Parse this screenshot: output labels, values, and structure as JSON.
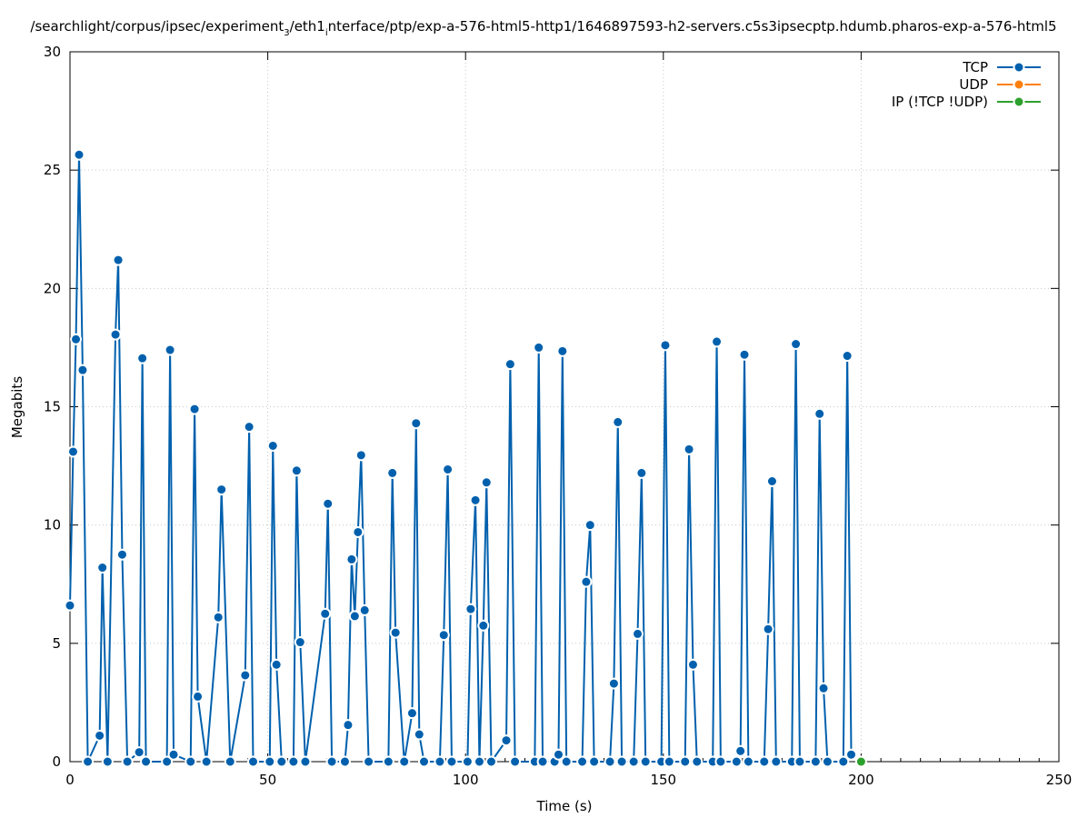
{
  "chart_data": {
    "type": "line",
    "title": "/searchlight/corpus/ipsec/experiment",
    "title_sub": "3",
    "title_mid": "/eth1",
    "title_sub2": "i",
    "title_end": "nterface/ptp/exp-a-576-html5-http1/1646897593-h2-servers.c5s3ipsecptp.hdumb.pharos-exp-a-576-html5",
    "xlabel": "Time (s)",
    "ylabel": "Megabits",
    "xlim": [
      0,
      250
    ],
    "ylim": [
      0,
      30
    ],
    "xticks": [
      0,
      50,
      100,
      150,
      200,
      250
    ],
    "yticks": [
      0,
      5,
      10,
      15,
      20,
      25,
      30
    ],
    "grid": true,
    "legend_position": "top-right",
    "series": [
      {
        "name": "TCP",
        "color": "#0060ad",
        "x": [
          0,
          0.8,
          1.5,
          2.3,
          3.2,
          4.5,
          7.5,
          8.2,
          9.5,
          11.5,
          12.2,
          13.2,
          14.5,
          17.5,
          18.3,
          19.2,
          24.5,
          25.3,
          26.2,
          30.5,
          31.5,
          32.3,
          34.5,
          37.5,
          38.3,
          40.5,
          44.3,
          45.3,
          46.3,
          50.5,
          51.3,
          52.2,
          53.5,
          56.5,
          57.3,
          58.2,
          59.5,
          64.5,
          65.2,
          66.2,
          69.5,
          70.3,
          71.2,
          72.0,
          72.8,
          73.6,
          74.5,
          75.5,
          80.5,
          81.5,
          82.3,
          84.5,
          86.5,
          87.5,
          88.3,
          89.5,
          93.5,
          94.5,
          95.5,
          96.5,
          100.5,
          101.3,
          102.5,
          103.5,
          104.5,
          105.3,
          106.5,
          110.3,
          111.3,
          112.5,
          117.5,
          118.5,
          119.5,
          122.5,
          123.5,
          124.5,
          125.5,
          129.5,
          130.5,
          131.5,
          132.5,
          136.5,
          137.5,
          138.5,
          139.5,
          142.5,
          143.5,
          144.5,
          145.5,
          149.5,
          150.5,
          151.5,
          155.5,
          156.5,
          157.5,
          158.5,
          162.5,
          163.5,
          164.5,
          168.5,
          169.5,
          170.5,
          171.5,
          175.5,
          176.5,
          177.5,
          178.5,
          182.5,
          183.5,
          184.5,
          188.5,
          189.5,
          190.5,
          191.5,
          195.5,
          196.5,
          197.5
        ],
        "y": [
          6.6,
          13.1,
          17.85,
          25.65,
          16.55,
          0,
          1.1,
          8.2,
          0,
          18.05,
          21.2,
          8.75,
          0,
          0.4,
          17.05,
          0,
          0,
          17.4,
          0.3,
          0,
          14.9,
          2.75,
          0,
          6.1,
          11.5,
          0,
          3.65,
          14.15,
          0,
          0,
          13.35,
          4.1,
          0,
          0,
          12.3,
          5.05,
          0,
          6.25,
          10.9,
          0,
          0,
          1.55,
          8.55,
          6.15,
          9.7,
          12.95,
          6.4,
          0,
          0,
          12.2,
          5.45,
          0,
          2.05,
          14.3,
          1.15,
          0,
          0,
          5.35,
          12.35,
          0,
          0,
          6.45,
          11.05,
          0,
          5.75,
          11.8,
          0,
          0.9,
          16.8,
          0,
          0,
          17.5,
          0,
          0,
          0.3,
          17.35,
          0,
          0,
          7.6,
          10,
          0,
          0,
          3.3,
          14.35,
          0,
          0,
          5.4,
          12.2,
          0,
          0,
          17.6,
          0,
          0,
          13.2,
          4.1,
          0,
          0,
          17.75,
          0,
          0,
          0.45,
          17.2,
          0,
          0,
          5.6,
          11.85,
          0,
          0,
          17.65,
          0,
          0,
          14.7,
          3.1,
          0,
          0,
          17.15,
          0.3
        ]
      },
      {
        "name": "UDP",
        "color": "#ff7f0e",
        "x": [],
        "y": []
      },
      {
        "name": "IP (!TCP  !UDP)",
        "color": "#2ca02c",
        "x": [
          200
        ],
        "y": [
          0
        ]
      }
    ]
  }
}
